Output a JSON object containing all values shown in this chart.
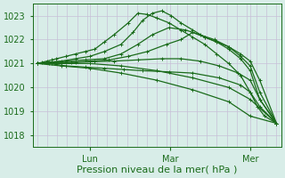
{
  "background_color": "#d8ede8",
  "grid_color": "#c8c0d8",
  "line_color": "#1a6b1a",
  "marker": "+",
  "markersize": 3,
  "linewidth": 0.9,
  "ylim": [
    1017.5,
    1023.5
  ],
  "yticks": [
    1018,
    1019,
    1020,
    1021,
    1022,
    1023
  ],
  "xlabel": "Pression niveau de la mer( hPa )",
  "xlabel_fontsize": 8,
  "tick_fontsize": 7,
  "xtick_labels": [
    "Lun",
    "Mar",
    "Mer"
  ],
  "figsize": [
    3.2,
    2.0
  ],
  "dpi": 100,
  "series": [
    {
      "x": [
        0.0,
        0.02,
        0.04,
        0.06,
        0.08,
        0.12,
        0.16,
        0.2,
        0.24,
        0.28,
        0.32,
        0.38,
        0.42,
        0.46,
        0.5,
        0.55,
        0.6,
        0.65,
        0.7,
        0.75,
        0.8,
        0.85,
        0.89,
        0.92,
        0.95,
        1.0
      ],
      "y": [
        1021.0,
        1021.05,
        1021.1,
        1021.15,
        1021.2,
        1021.3,
        1021.4,
        1021.5,
        1021.6,
        1021.9,
        1022.2,
        1022.7,
        1023.1,
        1023.05,
        1022.9,
        1022.7,
        1022.4,
        1022.1,
        1021.8,
        1021.4,
        1021.0,
        1020.5,
        1019.8,
        1019.2,
        1018.8,
        1018.5
      ]
    },
    {
      "x": [
        0.0,
        0.04,
        0.1,
        0.16,
        0.22,
        0.28,
        0.35,
        0.4,
        0.44,
        0.48,
        0.52,
        0.56,
        0.6,
        0.65,
        0.7,
        0.75,
        0.8,
        0.85,
        0.89,
        0.93,
        1.0
      ],
      "y": [
        1021.0,
        1021.05,
        1021.1,
        1021.2,
        1021.3,
        1021.5,
        1021.8,
        1022.3,
        1022.8,
        1023.1,
        1023.2,
        1023.0,
        1022.7,
        1022.4,
        1022.1,
        1021.9,
        1021.7,
        1021.4,
        1021.1,
        1020.3,
        1018.5
      ]
    },
    {
      "x": [
        0.0,
        0.05,
        0.12,
        0.2,
        0.28,
        0.35,
        0.42,
        0.48,
        0.55,
        0.62,
        0.68,
        0.74,
        0.8,
        0.85,
        0.89,
        0.93,
        1.0
      ],
      "y": [
        1021.0,
        1021.05,
        1021.1,
        1021.15,
        1021.2,
        1021.4,
        1021.8,
        1022.2,
        1022.5,
        1022.4,
        1022.2,
        1022.0,
        1021.7,
        1021.3,
        1020.9,
        1019.8,
        1018.5
      ]
    },
    {
      "x": [
        0.0,
        0.06,
        0.14,
        0.22,
        0.3,
        0.38,
        0.46,
        0.54,
        0.6,
        0.65,
        0.7,
        0.75,
        0.8,
        0.85,
        0.89,
        0.93,
        1.0
      ],
      "y": [
        1021.0,
        1021.02,
        1021.05,
        1021.1,
        1021.15,
        1021.3,
        1021.5,
        1021.8,
        1022.0,
        1022.3,
        1022.1,
        1021.9,
        1021.6,
        1021.2,
        1020.7,
        1019.5,
        1018.5
      ]
    },
    {
      "x": [
        0.0,
        0.08,
        0.16,
        0.24,
        0.32,
        0.42,
        0.52,
        0.6,
        0.68,
        0.76,
        0.84,
        0.89,
        0.93,
        1.0
      ],
      "y": [
        1021.0,
        1021.02,
        1021.05,
        1021.08,
        1021.1,
        1021.15,
        1021.2,
        1021.2,
        1021.1,
        1020.9,
        1020.6,
        1020.3,
        1019.5,
        1018.5
      ]
    },
    {
      "x": [
        0.0,
        0.05,
        0.12,
        0.2,
        0.28,
        0.36,
        0.44,
        0.55,
        0.65,
        0.76,
        0.85,
        0.89,
        0.93,
        1.0
      ],
      "y": [
        1021.0,
        1021.0,
        1020.9,
        1020.85,
        1020.8,
        1020.75,
        1020.7,
        1020.65,
        1020.6,
        1020.4,
        1020.1,
        1019.8,
        1019.2,
        1018.5
      ]
    },
    {
      "x": [
        0.0,
        0.1,
        0.22,
        0.35,
        0.5,
        0.65,
        0.8,
        0.89,
        1.0
      ],
      "y": [
        1021.0,
        1021.0,
        1021.0,
        1020.9,
        1020.7,
        1020.4,
        1020.0,
        1019.5,
        1018.5
      ]
    },
    {
      "x": [
        0.0,
        0.1,
        0.22,
        0.35,
        0.5,
        0.65,
        0.8,
        0.89,
        1.0
      ],
      "y": [
        1021.0,
        1020.9,
        1020.8,
        1020.6,
        1020.3,
        1019.9,
        1019.4,
        1018.8,
        1018.5
      ]
    }
  ]
}
